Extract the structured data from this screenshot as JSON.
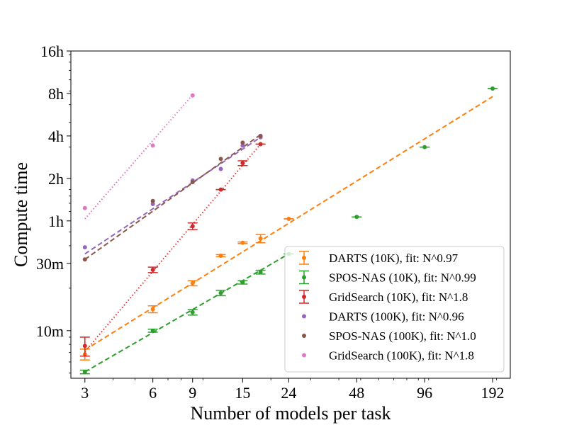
{
  "chart_data": {
    "type": "scatter",
    "scale": "log-log",
    "title": "",
    "xlabel": "Number of models per task",
    "ylabel": "Compute time",
    "xlim": [
      2.6,
      230
    ],
    "ylim": [
      4.6,
      960
    ],
    "y_unit": "minutes",
    "x_ticks": [
      {
        "value": 3,
        "label": "3"
      },
      {
        "value": 6,
        "label": "6"
      },
      {
        "value": 9,
        "label": "9"
      },
      {
        "value": 15,
        "label": "15"
      },
      {
        "value": 24,
        "label": "24"
      },
      {
        "value": 48,
        "label": "48"
      },
      {
        "value": 96,
        "label": "96"
      },
      {
        "value": 192,
        "label": "192"
      }
    ],
    "y_ticks": [
      {
        "value": 10,
        "label": "10m"
      },
      {
        "value": 30,
        "label": "30m"
      },
      {
        "value": 60,
        "label": "1h"
      },
      {
        "value": 120,
        "label": "2h"
      },
      {
        "value": 240,
        "label": "4h"
      },
      {
        "value": 480,
        "label": "8h"
      },
      {
        "value": 960,
        "label": "16h"
      }
    ],
    "legend_position": "bottom-right",
    "series": [
      {
        "name": "DARTS (10K), fit: N^0.97",
        "color": "#ff7f0e",
        "error_bars": true,
        "x": [
          3,
          6,
          9,
          12,
          15,
          18,
          24
        ],
        "y": [
          6.8,
          14.2,
          21.7,
          34,
          42,
          45,
          62
        ],
        "err": [
          0.6,
          0.8,
          0.9,
          0.6,
          0.5,
          3,
          0
        ],
        "fit": {
          "x0": 3,
          "y0": 7.3,
          "x1": 192,
          "y1": 456,
          "style": "dashed"
        }
      },
      {
        "name": "SPOS-NAS (10K), fit: N^0.99",
        "color": "#2ca02c",
        "error_bars": true,
        "x": [
          3,
          6,
          9,
          12,
          15,
          18,
          24,
          48,
          96,
          192
        ],
        "y": [
          5.1,
          10,
          13.5,
          18.5,
          22,
          26,
          35,
          64,
          200,
          520
        ],
        "err": [
          0.15,
          0.25,
          0.6,
          0.8,
          0.6,
          0.8,
          0,
          0,
          0,
          0
        ],
        "fit": {
          "x0": 3,
          "y0": 5.1,
          "x1": 24,
          "y1": 35,
          "style": "dashed"
        }
      },
      {
        "name": "GridSearch (10K), fit: N^1.8",
        "color": "#d62728",
        "error_bars": true,
        "x": [
          3,
          6,
          9,
          12,
          15,
          18
        ],
        "y": [
          7.8,
          27,
          55,
          100,
          154,
          210
        ],
        "err": [
          1.2,
          1.2,
          3,
          0,
          6,
          0
        ],
        "fit": {
          "x0": 3,
          "y0": 7.1,
          "x1": 18,
          "y1": 210,
          "style": "dotted"
        }
      },
      {
        "name": "DARTS (100K), fit: N^0.96",
        "color": "#9467bd",
        "error_bars": false,
        "x": [
          3,
          6,
          9,
          12,
          15,
          18
        ],
        "y": [
          39,
          79,
          116,
          140,
          205,
          235
        ],
        "fit": {
          "x0": 3,
          "y0": 35,
          "x1": 18,
          "y1": 235,
          "style": "dashed"
        }
      },
      {
        "name": "SPOS-NAS (100K), fit: N^1.0",
        "color": "#8c564b",
        "error_bars": false,
        "x": [
          3,
          6,
          9,
          12,
          15,
          18
        ],
        "y": [
          32,
          83,
          113,
          165,
          215,
          240
        ],
        "fit": {
          "x0": 3,
          "y0": 32,
          "x1": 18,
          "y1": 245,
          "style": "dashed"
        }
      },
      {
        "name": "GridSearch (100K), fit: N^1.8",
        "color": "#e377c2",
        "error_bars": false,
        "x": [
          3,
          6,
          9
        ],
        "y": [
          74,
          205,
          465
        ],
        "fit": {
          "x0": 3,
          "y0": 62,
          "x1": 9,
          "y1": 470,
          "style": "dotted"
        }
      }
    ]
  }
}
